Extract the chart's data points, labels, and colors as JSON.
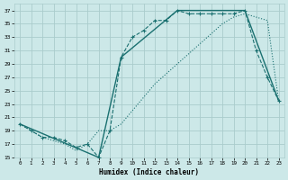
{
  "xlabel": "Humidex (Indice chaleur)",
  "bg_color": "#cce8e8",
  "grid_color": "#aacccc",
  "line_color": "#1a7070",
  "xlim": [
    -0.5,
    23.5
  ],
  "ylim": [
    15,
    38
  ],
  "yticks": [
    15,
    17,
    19,
    21,
    23,
    25,
    27,
    29,
    31,
    33,
    35,
    37
  ],
  "xticks": [
    0,
    1,
    2,
    3,
    4,
    5,
    6,
    7,
    8,
    9,
    10,
    11,
    12,
    13,
    14,
    15,
    16,
    17,
    18,
    19,
    20,
    21,
    22,
    23
  ],
  "series1_x": [
    0,
    1,
    2,
    3,
    4,
    5,
    6,
    7,
    8,
    9,
    10,
    11,
    12,
    13,
    14,
    15,
    16,
    17,
    18,
    19,
    20,
    21,
    22,
    23
  ],
  "series1_y": [
    20,
    19,
    18,
    18,
    17.5,
    16.5,
    17,
    15,
    19,
    30,
    33,
    34,
    35.5,
    35.5,
    37,
    36.5,
    36.5,
    36.5,
    36.5,
    36.5,
    37,
    31,
    27,
    23.5
  ],
  "series2_x": [
    0,
    1,
    2,
    3,
    4,
    5,
    6,
    7,
    8,
    9,
    10,
    11,
    12,
    13,
    14,
    15,
    16,
    17,
    18,
    19,
    20,
    21,
    22,
    23
  ],
  "series2_y": [
    20,
    19,
    18,
    17.5,
    17,
    16,
    17,
    19,
    19,
    20,
    22,
    24,
    26,
    27.5,
    29,
    30.5,
    32,
    33.5,
    35,
    36,
    36.5,
    36,
    35.5,
    23.5
  ],
  "series3_x": [
    0,
    7,
    9,
    14,
    20,
    23
  ],
  "series3_y": [
    20,
    15,
    30,
    37,
    37,
    23.5
  ]
}
